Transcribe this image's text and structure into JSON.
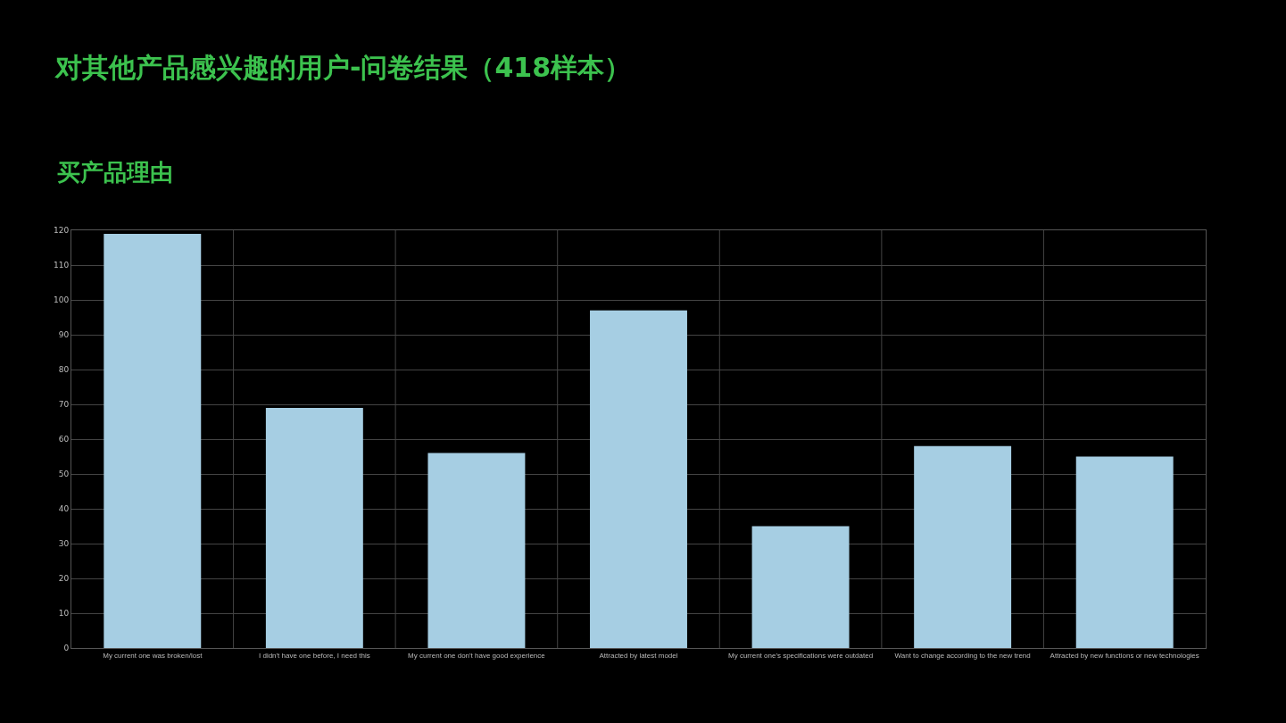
{
  "chart_data": {
    "type": "bar",
    "title": "对其他产品感兴趣的用户-问卷结果（418样本）",
    "subtitle": "买产品理由",
    "categories": [
      "My current one was broken/lost",
      "I didn't have one before, I need this",
      "My current one don't have good experience",
      "Attracted by latest model",
      "My current one's specifications were outdated",
      "Want to change according to the new trend",
      "Attracted by new functions or new technologies"
    ],
    "values": [
      119,
      69,
      56,
      97,
      35,
      58,
      55
    ],
    "color": "#a6cee3",
    "ylim": [
      0,
      120
    ],
    "yticks": [
      0,
      10,
      20,
      30,
      40,
      50,
      60,
      70,
      80,
      90,
      100,
      110,
      120
    ],
    "grid": true
  }
}
